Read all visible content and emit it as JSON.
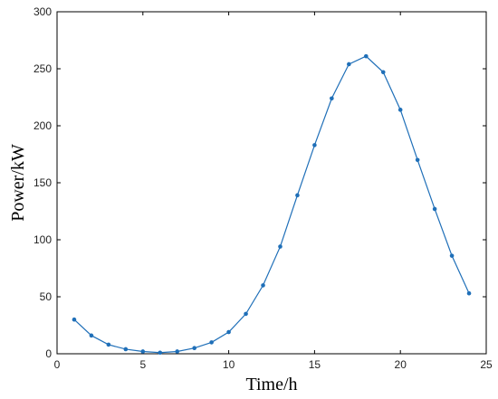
{
  "chart_data": {
    "type": "line",
    "xlabel": "Time/h",
    "ylabel": "Power/kW",
    "xlim": [
      0,
      25
    ],
    "ylim": [
      0,
      300
    ],
    "xticks": [
      0,
      5,
      10,
      15,
      20,
      25
    ],
    "yticks": [
      0,
      50,
      100,
      150,
      200,
      250,
      300
    ],
    "grid": false,
    "series_color": "#1f6fb8",
    "series": [
      {
        "x": [
          1,
          2,
          3,
          4,
          5,
          6,
          7,
          8,
          9,
          10,
          11,
          12,
          13,
          14,
          15,
          16,
          17,
          18,
          19,
          20,
          21,
          22,
          23,
          24
        ],
        "values": [
          30,
          16,
          8,
          4,
          2,
          1,
          2,
          5,
          10,
          19,
          35,
          60,
          94,
          139,
          183,
          224,
          254,
          261,
          247,
          214,
          170,
          127,
          86,
          53
        ]
      }
    ]
  }
}
